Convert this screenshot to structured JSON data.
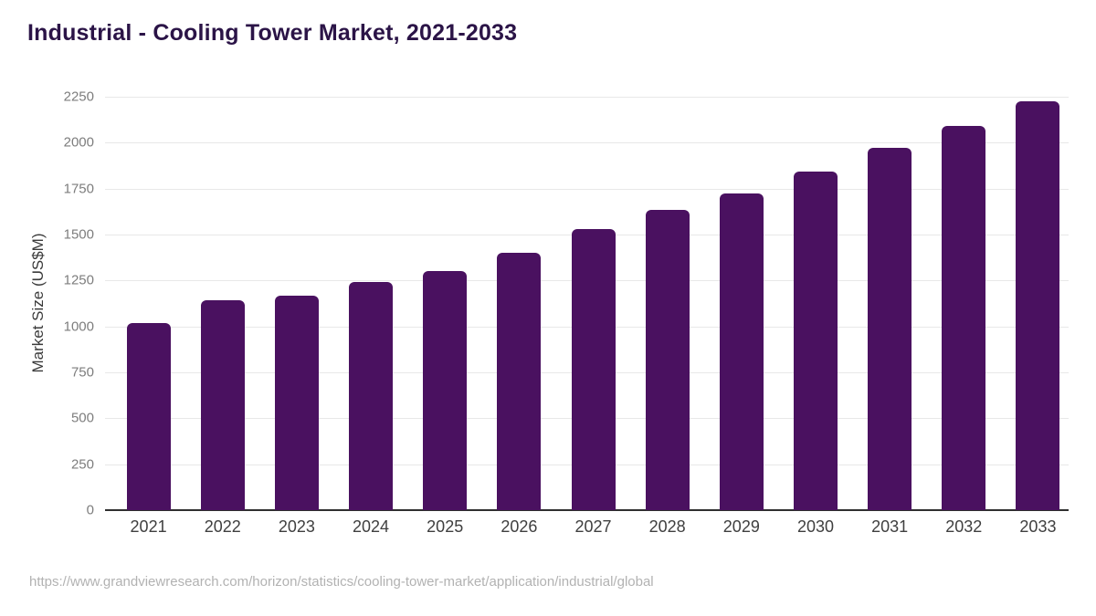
{
  "header": {
    "title": "Industrial - Cooling Tower Market, 2021-2033",
    "title_color": "#2b1447"
  },
  "footer": {
    "source_url": "https://www.grandviewresearch.com/horizon/statistics/cooling-tower-market/application/industrial/global"
  },
  "chart_data": {
    "type": "bar",
    "title": "Industrial - Cooling Tower Market, 2021-2033",
    "xlabel": "",
    "ylabel": "Market Size (US$M)",
    "categories": [
      "2021",
      "2022",
      "2023",
      "2024",
      "2025",
      "2026",
      "2027",
      "2028",
      "2029",
      "2030",
      "2031",
      "2032",
      "2033"
    ],
    "values": [
      1020,
      1140,
      1165,
      1240,
      1300,
      1400,
      1530,
      1635,
      1725,
      1845,
      1970,
      2090,
      2225
    ],
    "ylim": [
      0,
      2250
    ],
    "yticks": [
      0,
      250,
      500,
      750,
      1000,
      1250,
      1500,
      1750,
      2000,
      2250
    ],
    "grid": "horizontal-only",
    "legend": "none",
    "colors": {
      "bar": "#4a1160",
      "gridline": "#e8e8e8",
      "axis_line": "#2f2f2f",
      "ytick_label": "#7d7d7d",
      "xtick_label": "#3f3f3f"
    }
  }
}
